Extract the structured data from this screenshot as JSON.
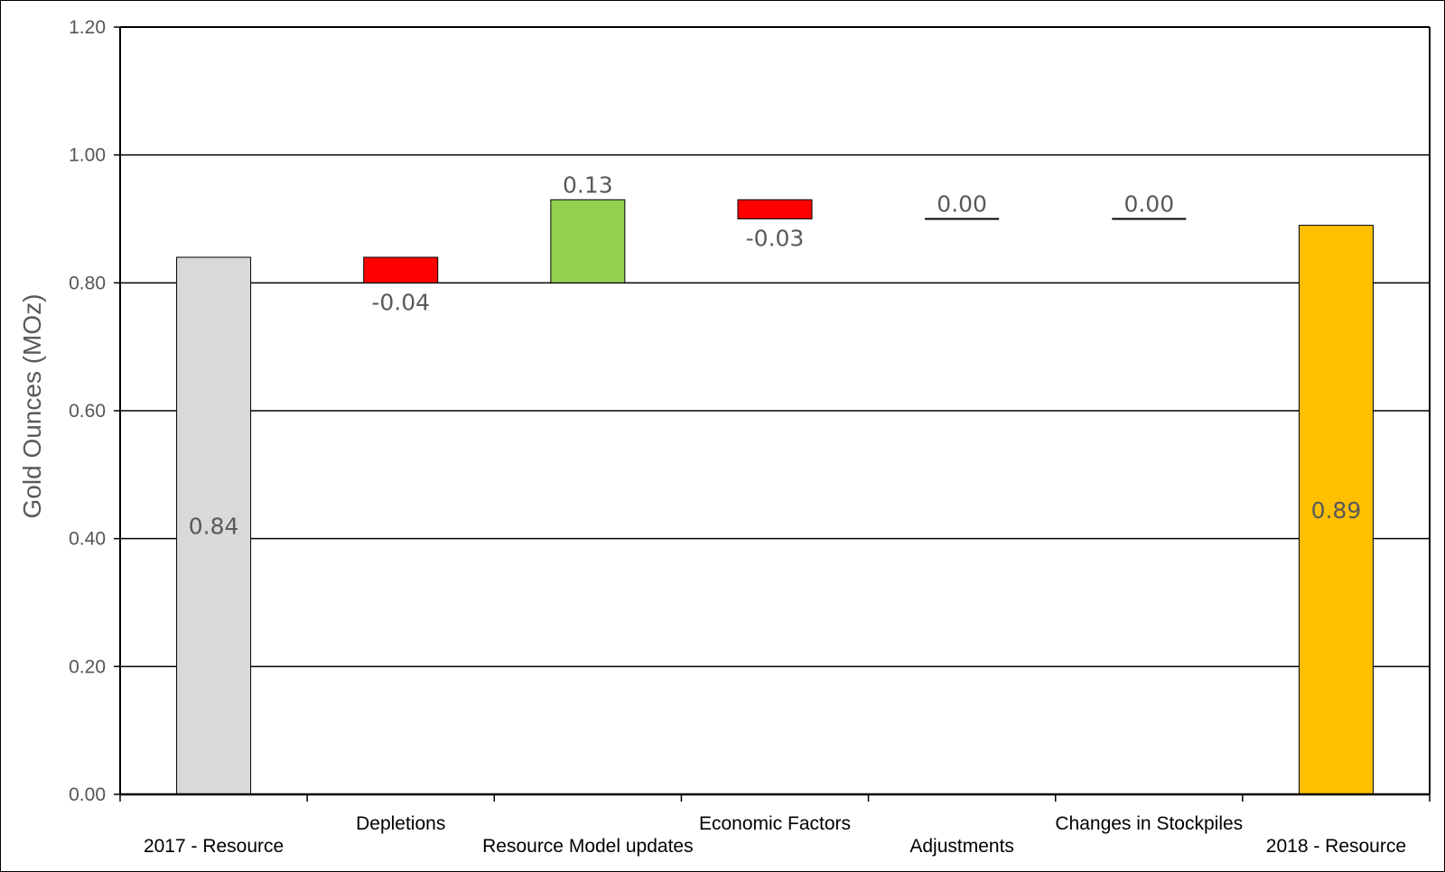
{
  "chart_data": {
    "type": "bar",
    "subtype": "waterfall",
    "title": "",
    "xlabel": "",
    "ylabel": "Gold Ounces (MOz)",
    "ylim": [
      0,
      1.2
    ],
    "yticks": [
      "0.00",
      "0.20",
      "0.40",
      "0.60",
      "0.80",
      "1.00",
      "1.20"
    ],
    "grid": true,
    "legend": "none",
    "categories": [
      "2017 - Resource",
      "Depletions",
      "Resource Model updates",
      "Economic Factors",
      "Adjustments",
      "Changes in Stockpiles",
      "2018 - Resource"
    ],
    "bars": [
      {
        "category": "2017 - Resource",
        "kind": "total",
        "base": 0,
        "value": 0.84,
        "label": "0.84",
        "color": "#d9d9d9"
      },
      {
        "category": "Depletions",
        "kind": "delta",
        "base": 0.84,
        "value": -0.04,
        "label": "-0.04",
        "color": "#ff0000"
      },
      {
        "category": "Resource Model updates",
        "kind": "delta",
        "base": 0.8,
        "value": 0.13,
        "label": "0.13",
        "color": "#92d050"
      },
      {
        "category": "Economic Factors",
        "kind": "delta",
        "base": 0.93,
        "value": -0.03,
        "label": "-0.03",
        "color": "#ff0000"
      },
      {
        "category": "Adjustments",
        "kind": "delta",
        "base": 0.9,
        "value": 0.0,
        "label": "0.00",
        "color": "#000000"
      },
      {
        "category": "Changes in Stockpiles",
        "kind": "delta",
        "base": 0.9,
        "value": 0.0,
        "label": "0.00",
        "color": "#000000"
      },
      {
        "category": "2018 - Resource",
        "kind": "total",
        "base": 0,
        "value": 0.89,
        "label": "0.89",
        "color": "#ffc000"
      }
    ]
  }
}
